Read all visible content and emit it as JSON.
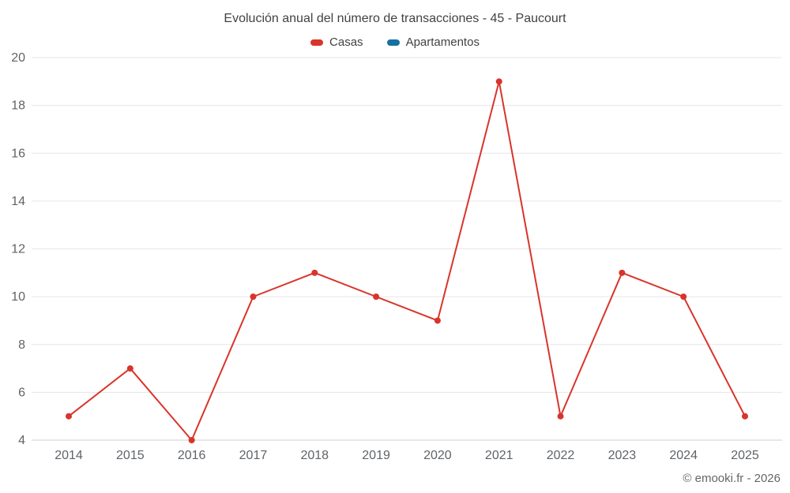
{
  "chart_data": {
    "type": "line",
    "title": "Evolución anual del número de transacciones - 45 - Paucourt",
    "x": [
      2014,
      2015,
      2016,
      2017,
      2018,
      2019,
      2020,
      2021,
      2022,
      2023,
      2024,
      2025
    ],
    "series": [
      {
        "name": "Casas",
        "color": "#d9342b",
        "values": [
          5,
          7,
          4,
          10,
          11,
          10,
          9,
          19,
          5,
          11,
          10,
          5
        ]
      },
      {
        "name": "Apartamentos",
        "color": "#15719f",
        "values": []
      }
    ],
    "ylim": [
      4,
      20
    ],
    "ytick_step": 2,
    "yticks": [
      4,
      6,
      8,
      10,
      12,
      14,
      16,
      18,
      20
    ],
    "grid": true,
    "legend_position": "top",
    "xlabel": "",
    "ylabel": ""
  },
  "colors": {
    "grid": "#e6e6e6",
    "axis": "#cfcfcf",
    "tick_text": "#5f6368",
    "title_text": "#424242"
  },
  "footer": {
    "copyright": "© emooki.fr - 2026"
  }
}
